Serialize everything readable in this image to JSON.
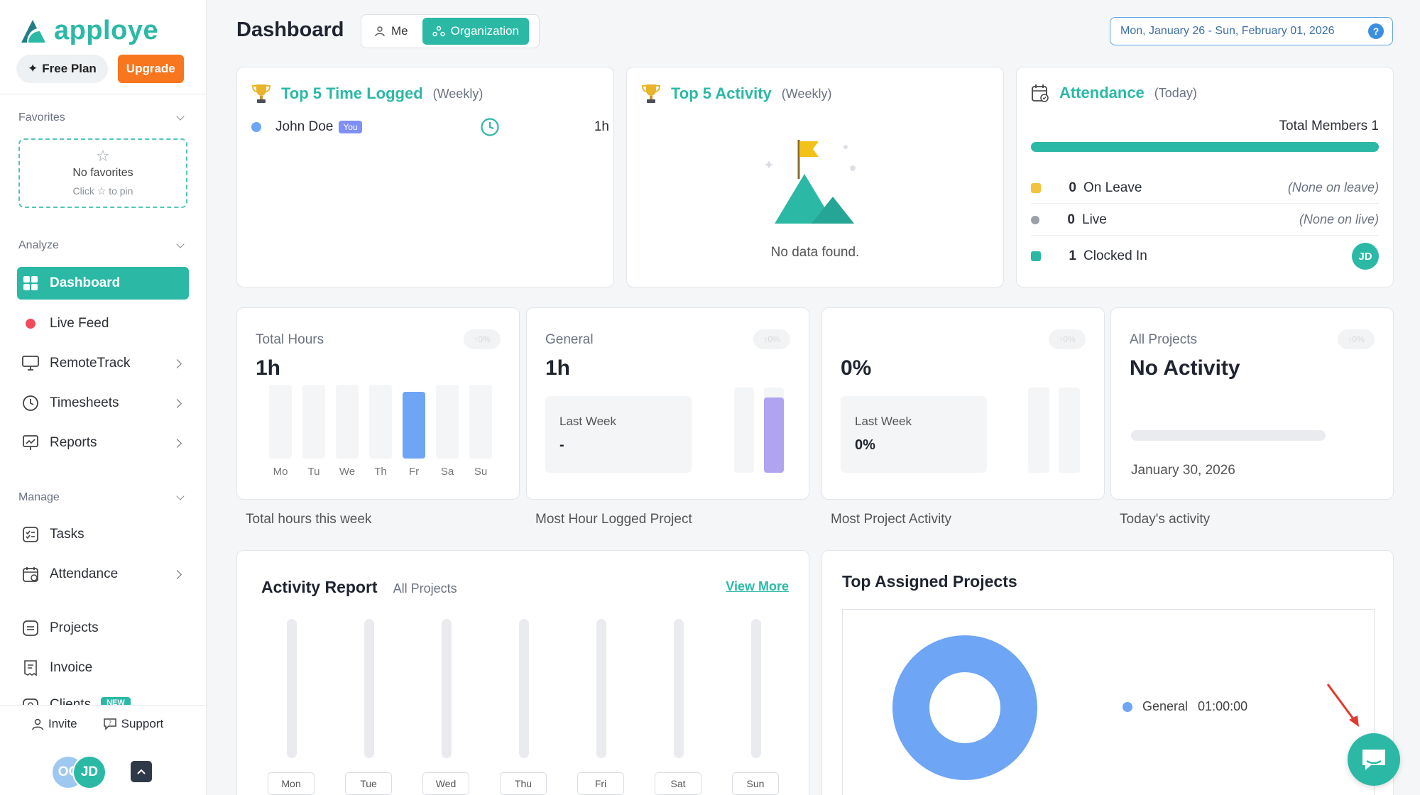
{
  "sidebar": {
    "brand": "apploye",
    "free_plan_label": "Free Plan",
    "upgrade_label": "Upgrade",
    "favorites": {
      "heading": "Favorites",
      "empty_title": "No favorites",
      "empty_hint": "Click ☆ to pin"
    },
    "analyze_heading": "Analyze",
    "manage_heading": "Manage",
    "items": {
      "dashboard": "Dashboard",
      "live_feed": "Live Feed",
      "remotetrack": "RemoteTrack",
      "timesheets": "Timesheets",
      "reports": "Reports",
      "tasks": "Tasks",
      "attendance": "Attendance",
      "projects": "Projects",
      "invoice": "Invoice",
      "clients": "Clients",
      "clients_badge": "NEW"
    },
    "invite_label": "Invite",
    "support_label": "Support",
    "avatars": [
      "OC",
      "JD"
    ]
  },
  "header": {
    "title": "Dashboard",
    "toggle_me": "Me",
    "toggle_org": "Organization",
    "date_range": "Mon, January 26 - Sun, February 01, 2026",
    "help": "?"
  },
  "top_time": {
    "title": "Top 5 Time Logged",
    "period": "(Weekly)",
    "user_name": "John Doe",
    "user_badge": "You",
    "user_time": "1h"
  },
  "top_activity": {
    "title": "Top 5 Activity",
    "period": "(Weekly)",
    "empty": "No data found."
  },
  "attendance": {
    "title": "Attendance",
    "period": "(Today)",
    "total_label": "Total Members 1",
    "rows": [
      {
        "count": "0",
        "label": "On Leave",
        "note": "(None on leave)",
        "color": "#f3c33c"
      },
      {
        "count": "0",
        "label": "Live",
        "note": "(None on live)",
        "color": "#9aa0a8"
      },
      {
        "count": "1",
        "label": "Clocked In",
        "avatar": "JD",
        "color": "#2bb9a6"
      }
    ]
  },
  "stats": {
    "total_hours": {
      "label": "Total Hours",
      "value": "1h",
      "chip": "↑0%",
      "caption": "Total hours this week",
      "days": [
        "Mo",
        "Tu",
        "We",
        "Th",
        "Fr",
        "Sa",
        "Su"
      ],
      "highlight_day": "Fr"
    },
    "general": {
      "label": "General",
      "value": "1h",
      "chip": "↑0%",
      "last_week_label": "Last Week",
      "last_week_value": "-",
      "caption": "Most Hour Logged Project"
    },
    "activity": {
      "value": "0%",
      "chip": "↑0%",
      "last_week_label": "Last Week",
      "last_week_value": "0%",
      "caption": "Most Project Activity"
    },
    "all_projects": {
      "label": "All Projects",
      "value": "No Activity",
      "chip": "↑0%",
      "date": "January 30, 2026",
      "caption": "Today's activity"
    }
  },
  "activity_report": {
    "title": "Activity Report",
    "filter": "All Projects",
    "view_more": "View More",
    "days": [
      "Mon",
      "Tue",
      "Wed",
      "Thu",
      "Fri",
      "Sat",
      "Sun"
    ]
  },
  "top_assigned": {
    "title": "Top Assigned Projects",
    "legend_name": "General",
    "legend_value": "01:00:00",
    "color": "#6ea5f5"
  },
  "colors": {
    "accent": "#2bb9a6",
    "orange": "#f7761e",
    "bar_blue": "#6ea5f5",
    "bar_purple": "#b0a3f0"
  }
}
